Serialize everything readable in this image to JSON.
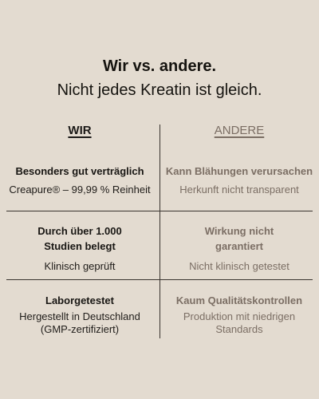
{
  "heading": {
    "title": "Wir vs. andere.",
    "subtitle": "Nicht jedes Kreatin ist gleich."
  },
  "columns": {
    "left": "WIR",
    "right": "ANDERE"
  },
  "rows": [
    {
      "left_title": "Besonders gut verträglich",
      "left_sub": "Creapure® – 99,99 % Reinheit",
      "right_title": "Kann Blähungen verursachen",
      "right_sub": "Herkunft nicht transparent"
    },
    {
      "left_title_1": "Durch über 1.000",
      "left_title_2": "Studien belegt",
      "left_sub": "Klinisch geprüft",
      "right_title_1": "Wirkung nicht",
      "right_title_2": "garantiert",
      "right_sub": "Nicht klinisch getestet"
    },
    {
      "left_title": "Laborgetestet",
      "left_sub_1": "Hergestellt in Deutschland",
      "left_sub_2": "(GMP-zertifiziert)",
      "right_title": "Kaum Qualitätskontrollen",
      "right_sub_1": "Produktion mit niedrigen",
      "right_sub_2": "Standards"
    }
  ]
}
